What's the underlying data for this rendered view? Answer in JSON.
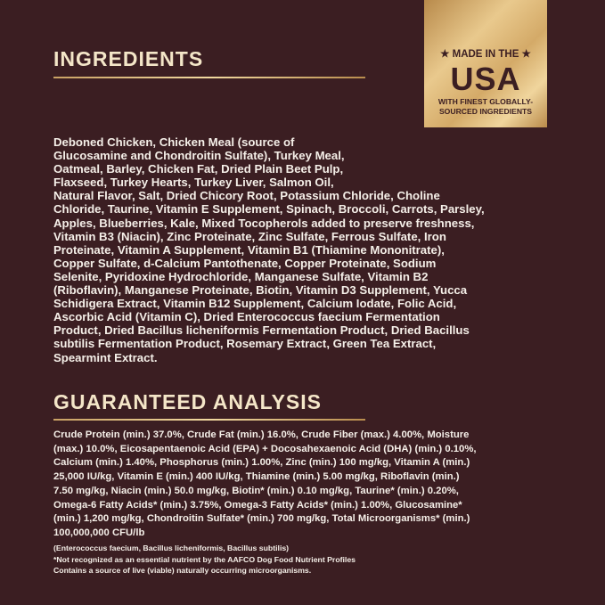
{
  "badge": {
    "line1": "★ MADE IN THE ★",
    "line2": "USA",
    "line3": "WITH FINEST GLOBALLY-",
    "line4": "SOURCED INGREDIENTS"
  },
  "ingredients": {
    "title": "INGREDIENTS",
    "lines": [
      "Deboned Chicken, Chicken Meal (source of",
      "Glucosamine and Chondroitin Sulfate), Turkey Meal,",
      "Oatmeal, Barley, Chicken Fat, Dried Plain Beet Pulp,",
      "Flaxseed, Turkey Hearts, Turkey Liver, Salmon Oil,",
      "Natural Flavor, Salt, Dried Chicory Root, Potassium Chloride, Choline",
      "Chloride, Taurine, Vitamin E Supplement, Spinach, Broccoli, Carrots, Parsley,",
      "Apples, Blueberries, Kale, Mixed Tocopherols added to preserve freshness,",
      "Vitamin B3 (Niacin), Zinc Proteinate, Zinc Sulfate, Ferrous Sulfate, Iron",
      "Proteinate, Vitamin A Supplement, Vitamin B1 (Thiamine Mononitrate),",
      "Copper Sulfate, d-Calcium Pantothenate, Copper Proteinate, Sodium",
      "Selenite, Pyridoxine Hydrochloride, Manganese Sulfate, Vitamin B2",
      "(Riboflavin), Manganese Proteinate, Biotin, Vitamin D3 Supplement, Yucca",
      "Schidigera Extract, Vitamin B12 Supplement, Calcium Iodate, Folic Acid,",
      "Ascorbic Acid (Vitamin C), Dried Enterococcus faecium Fermentation",
      "Product, Dried Bacillus licheniformis Fermentation Product, Dried Bacillus",
      "subtilis Fermentation Product, Rosemary Extract, Green Tea Extract,",
      "Spearmint Extract."
    ]
  },
  "analysis": {
    "title": "GUARANTEED ANALYSIS",
    "lines": [
      "Crude Protein (min.) 37.0%, Crude Fat (min.) 16.0%, Crude Fiber (max.) 4.00%, Moisture",
      "(max.) 10.0%, Eicosapentaenoic Acid (EPA) + Docosahexaenoic Acid (DHA) (min.) 0.10%,",
      "Calcium (min.) 1.40%, Phosphorus (min.) 1.00%, Zinc (min.) 100 mg/kg, Vitamin A (min.)",
      "25,000 IU/kg, Vitamin E (min.) 400 IU/kg, Thiamine (min.) 5.00 mg/kg, Riboflavin (min.)",
      "7.50 mg/kg, Niacin (min.) 50.0 mg/kg, Biotin* (min.) 0.10 mg/kg, Taurine* (min.) 0.20%,",
      "Omega-6 Fatty Acids* (min.) 3.75%, Omega-3 Fatty Acids* (min.) 1.00%, Glucosamine*",
      "(min.) 1,200 mg/kg, Chondroitin Sulfate* (min.) 700 mg/kg, Total Microorganisms* (min.)",
      "100,000,000 CFU/lb"
    ],
    "notes": [
      "(Enterococcus faecium, Bacillus licheniformis, Bacillus subtilis)",
      "*Not recognized as an essential nutrient by the AAFCO Dog Food Nutrient Profiles",
      "Contains a source of live (viable) naturally occurring microorganisms."
    ]
  }
}
